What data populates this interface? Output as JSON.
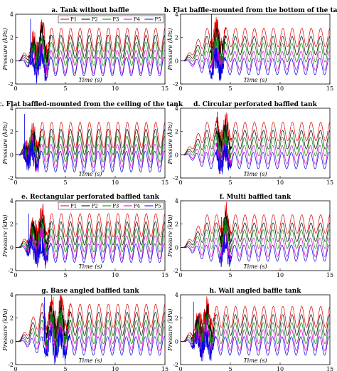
{
  "figure": {
    "colors": {
      "P1": "#e00000",
      "P2": "#000000",
      "P3": "#008000",
      "P4": "#d000d0",
      "P5": "#0000e0"
    }
  },
  "chart_data": [
    {
      "type": "line",
      "title": "a. Tank without baffle",
      "xlabel": "Time (s)",
      "ylabel": "Pressure (kPa)",
      "xlim": [
        0,
        15
      ],
      "ylim": [
        -2,
        4
      ],
      "xticks": [
        "0",
        "5",
        "10",
        "15"
      ],
      "yticks": [
        "-2",
        "0",
        "2",
        "4"
      ],
      "legend": {
        "placement": "top-right",
        "entries": [
          "P1",
          "P2",
          "P3",
          "P4",
          "P5"
        ]
      },
      "series": [
        {
          "name": "P1",
          "mean": 1.8,
          "amplitude": 1.0,
          "period": 0.95,
          "start": 0.3
        },
        {
          "name": "P2",
          "mean": 1.2,
          "amplitude": 1.0,
          "period": 0.95,
          "start": 0.3
        },
        {
          "name": "P3",
          "mean": 0.6,
          "amplitude": 1.0,
          "period": 0.95,
          "start": 0.3
        },
        {
          "name": "P4",
          "mean": -0.1,
          "amplitude": 1.0,
          "period": 0.95,
          "start": 0.3
        },
        {
          "name": "P5",
          "mean": -0.5,
          "amplitude": 0.8,
          "period": 0.95,
          "start": 0.3
        }
      ],
      "transient": {
        "start": 1.2,
        "end": 3.6,
        "peak": 3.6
      }
    },
    {
      "type": "line",
      "title": "b. Flat baffle-mounted from the bottom of the tank",
      "xlabel": "Time (s)",
      "ylabel": "Pressure (kPa)",
      "xlim": [
        0,
        15
      ],
      "ylim": [
        -2,
        4
      ],
      "xticks": [
        "0",
        "5",
        "10",
        "15"
      ],
      "yticks": [
        "-2",
        "0",
        "2",
        "4"
      ],
      "series": [
        {
          "name": "P1",
          "mean": 2.0,
          "amplitude": 0.8,
          "period": 0.95,
          "start": 0.3
        },
        {
          "name": "P2",
          "mean": 1.3,
          "amplitude": 0.8,
          "period": 0.95,
          "start": 0.3
        },
        {
          "name": "P3",
          "mean": 0.7,
          "amplitude": 0.8,
          "period": 0.95,
          "start": 0.3
        },
        {
          "name": "P4",
          "mean": 0.0,
          "amplitude": 0.8,
          "period": 0.95,
          "start": 0.3
        },
        {
          "name": "P5",
          "mean": -0.5,
          "amplitude": 0.7,
          "period": 0.95,
          "start": 0.3
        }
      ],
      "transient": {
        "start": 2.8,
        "end": 4.6,
        "peak": 4.0
      }
    },
    {
      "type": "line",
      "title": "c. Flat baffled-mounted from the ceiling of the tank",
      "xlabel": "Time (s)",
      "ylabel": "Pressure (kPa)",
      "xlim": [
        0,
        15
      ],
      "ylim": [
        -2,
        4
      ],
      "xticks": [
        "0",
        "5",
        "10",
        "15"
      ],
      "yticks": [
        "-2",
        "0",
        "2",
        "4"
      ],
      "series": [
        {
          "name": "P1",
          "mean": 1.7,
          "amplitude": 1.1,
          "period": 0.95,
          "start": 0.3
        },
        {
          "name": "P2",
          "mean": 1.1,
          "amplitude": 1.1,
          "period": 0.95,
          "start": 0.3
        },
        {
          "name": "P3",
          "mean": 0.5,
          "amplitude": 1.1,
          "period": 0.95,
          "start": 0.3
        },
        {
          "name": "P4",
          "mean": -0.1,
          "amplitude": 1.0,
          "period": 0.95,
          "start": 0.3
        },
        {
          "name": "P5",
          "mean": -0.6,
          "amplitude": 0.9,
          "period": 0.95,
          "start": 0.3
        }
      ],
      "transient": {
        "start": 0.6,
        "end": 2.6,
        "peak": 3.5
      }
    },
    {
      "type": "line",
      "title": "d. Circular perforated baffled tank",
      "xlabel": "Time (s)",
      "ylabel": "Pressure (kPa)",
      "xlim": [
        0,
        15
      ],
      "ylim": [
        -2,
        4
      ],
      "xticks": [
        "0",
        "5",
        "10",
        "15"
      ],
      "yticks": [
        "-2",
        "0",
        "2",
        "4"
      ],
      "series": [
        {
          "name": "P1",
          "mean": 2.0,
          "amplitude": 0.8,
          "period": 0.95,
          "start": 0.3
        },
        {
          "name": "P2",
          "mean": 1.3,
          "amplitude": 0.8,
          "period": 0.95,
          "start": 0.3
        },
        {
          "name": "P3",
          "mean": 0.7,
          "amplitude": 0.8,
          "period": 0.95,
          "start": 0.3
        },
        {
          "name": "P4",
          "mean": 0.0,
          "amplitude": 0.8,
          "period": 0.95,
          "start": 0.3
        },
        {
          "name": "P5",
          "mean": -0.5,
          "amplitude": 0.7,
          "period": 0.95,
          "start": 0.3
        }
      ],
      "transient": {
        "start": 3.4,
        "end": 5.2,
        "peak": 3.7
      }
    },
    {
      "type": "line",
      "title": "e. Rectangular perforated baffled tank",
      "xlabel": "Time (s)",
      "ylabel": "Pressure (kPa)",
      "xlim": [
        0,
        15
      ],
      "ylim": [
        -2,
        4
      ],
      "xticks": [
        "0",
        "5",
        "10",
        "15"
      ],
      "yticks": [
        "-2",
        "0",
        "2",
        "4"
      ],
      "legend": {
        "placement": "top-right",
        "entries": [
          "P1",
          "P2",
          "P3",
          "P4",
          "P5"
        ]
      },
      "series": [
        {
          "name": "P1",
          "mean": 1.9,
          "amplitude": 1.0,
          "period": 0.95,
          "start": 0.3
        },
        {
          "name": "P2",
          "mean": 1.2,
          "amplitude": 1.0,
          "period": 0.95,
          "start": 0.3
        },
        {
          "name": "P3",
          "mean": 0.6,
          "amplitude": 1.0,
          "period": 0.95,
          "start": 0.3
        },
        {
          "name": "P4",
          "mean": 0.0,
          "amplitude": 1.0,
          "period": 0.95,
          "start": 0.3
        },
        {
          "name": "P5",
          "mean": -0.5,
          "amplitude": 0.8,
          "period": 0.95,
          "start": 0.3
        }
      ],
      "transient": {
        "start": 1.0,
        "end": 3.6,
        "peak": 2.9
      }
    },
    {
      "type": "line",
      "title": "f. Multi baffled tank",
      "xlabel": "Time (s)",
      "ylabel": "Pressure (kPa)",
      "xlim": [
        0,
        15
      ],
      "ylim": [
        -2,
        4
      ],
      "xticks": [
        "0",
        "5",
        "10",
        "15"
      ],
      "yticks": [
        "-2",
        "0",
        "2",
        "4"
      ],
      "series": [
        {
          "name": "P1",
          "mean": 2.0,
          "amplitude": 0.8,
          "period": 0.95,
          "start": 0.3
        },
        {
          "name": "P2",
          "mean": 1.3,
          "amplitude": 0.8,
          "period": 0.95,
          "start": 0.3
        },
        {
          "name": "P3",
          "mean": 0.7,
          "amplitude": 0.8,
          "period": 0.95,
          "start": 0.3
        },
        {
          "name": "P4",
          "mean": 0.0,
          "amplitude": 0.8,
          "period": 0.95,
          "start": 0.3
        },
        {
          "name": "P5",
          "mean": -0.5,
          "amplitude": 0.7,
          "period": 0.95,
          "start": 0.3
        }
      ],
      "transient": {
        "start": 3.8,
        "end": 5.2,
        "peak": 2.6
      }
    },
    {
      "type": "line",
      "title": "g. Base angled baffled tank",
      "xlabel": "Time (s)",
      "ylabel": "Pressure (kPa)",
      "xlim": [
        0,
        15
      ],
      "ylim": [
        -2,
        4
      ],
      "xticks": [
        "0",
        "5",
        "10",
        "15"
      ],
      "yticks": [
        "-2",
        "0",
        "2",
        "4"
      ],
      "series": [
        {
          "name": "P1",
          "mean": 2.2,
          "amplitude": 1.0,
          "period": 0.95,
          "start": 0.3
        },
        {
          "name": "P2",
          "mean": 1.5,
          "amplitude": 1.0,
          "period": 0.95,
          "start": 0.3
        },
        {
          "name": "P3",
          "mean": 0.8,
          "amplitude": 1.0,
          "period": 0.95,
          "start": 0.3
        },
        {
          "name": "P4",
          "mean": 0.2,
          "amplitude": 1.0,
          "period": 0.95,
          "start": 0.3
        },
        {
          "name": "P5",
          "mean": -0.4,
          "amplitude": 0.8,
          "period": 0.95,
          "start": 0.3
        }
      ],
      "transient": {
        "start": 2.6,
        "end": 5.6,
        "peak": 3.8
      }
    },
    {
      "type": "line",
      "title": "h. Wall angled baffle tank",
      "xlabel": "Time (s)",
      "ylabel": "Pressure (kPa)",
      "xlim": [
        0,
        15
      ],
      "ylim": [
        -2,
        4
      ],
      "xticks": [
        "0",
        "5",
        "10",
        "15"
      ],
      "yticks": [
        "-2",
        "0",
        "2",
        "4"
      ],
      "series": [
        {
          "name": "P1",
          "mean": 2.1,
          "amplitude": 0.9,
          "period": 0.95,
          "start": 0.3
        },
        {
          "name": "P2",
          "mean": 1.4,
          "amplitude": 0.9,
          "period": 0.95,
          "start": 0.3
        },
        {
          "name": "P3",
          "mean": 0.7,
          "amplitude": 0.9,
          "period": 0.95,
          "start": 0.3
        },
        {
          "name": "P4",
          "mean": 0.1,
          "amplitude": 0.9,
          "period": 0.95,
          "start": 0.3
        },
        {
          "name": "P5",
          "mean": -0.4,
          "amplitude": 0.8,
          "period": 0.95,
          "start": 0.3
        }
      ],
      "transient": {
        "start": 1.0,
        "end": 3.6,
        "peak": 3.4
      }
    }
  ]
}
